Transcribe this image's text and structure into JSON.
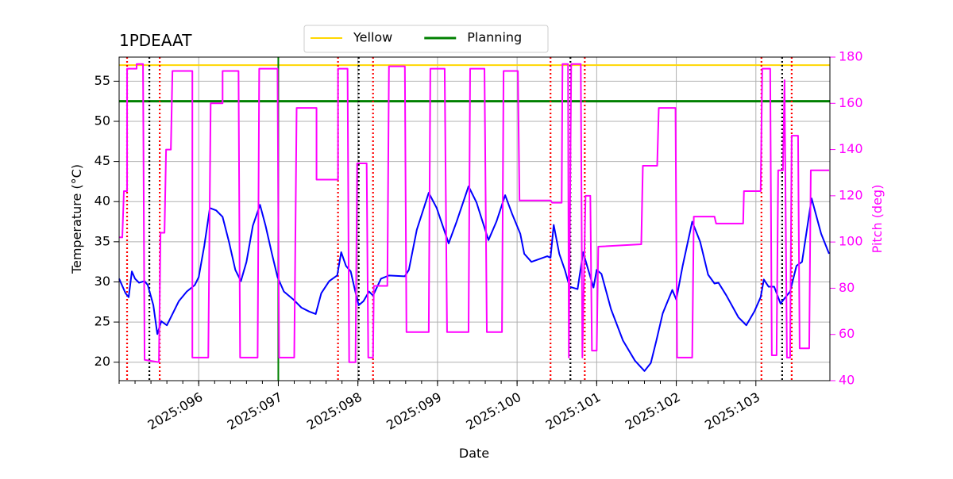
{
  "chart_data": {
    "type": "line",
    "title": "1PDEAAT",
    "xlabel": "Date",
    "ylabel": "Temperature (°C)",
    "y2label": "Pitch (deg)",
    "y2color": "magenta",
    "grid": true,
    "legend": "upper center",
    "xlim": [
      95.0,
      103.93
    ],
    "xticks": [
      {
        "value": 96,
        "label": "2025:096"
      },
      {
        "value": 97,
        "label": "2025:097"
      },
      {
        "value": 98,
        "label": "2025:098"
      },
      {
        "value": 99,
        "label": "2025:099"
      },
      {
        "value": 100,
        "label": "2025:100"
      },
      {
        "value": 101,
        "label": "2025:101"
      },
      {
        "value": 102,
        "label": "2025:102"
      },
      {
        "value": 103,
        "label": "2025:103"
      }
    ],
    "ylim": [
      17.7,
      58.0
    ],
    "yticks": [
      20,
      25,
      30,
      35,
      40,
      45,
      50,
      55
    ],
    "y2lim": [
      40,
      180
    ],
    "y2ticks": [
      40,
      60,
      80,
      100,
      120,
      140,
      160,
      180
    ],
    "hlines": [
      {
        "name": "Yellow",
        "color": "gold",
        "value": 57.0
      },
      {
        "name": "Planning",
        "color": "green",
        "value": 52.5
      }
    ],
    "vlines": [
      {
        "color": "red",
        "style": "dotted",
        "x": [
          95.1,
          95.51,
          97.75,
          98.19,
          100.42,
          100.85,
          103.07,
          103.45
        ]
      },
      {
        "color": "black",
        "style": "dotted",
        "x": [
          95.38,
          98.01,
          100.67,
          103.33
        ]
      },
      {
        "color": "green",
        "style": "solid",
        "x": [
          97.0
        ]
      }
    ],
    "series": [
      {
        "color": "blue",
        "x": [
          95.0,
          95.08,
          95.12,
          95.16,
          95.2,
          95.25,
          95.32,
          95.36,
          95.43,
          95.48,
          95.53,
          95.6,
          95.65,
          95.75,
          95.85,
          95.95,
          96.0,
          96.07,
          96.14,
          96.22,
          96.3,
          96.38,
          96.46,
          96.53,
          96.6,
          96.68,
          96.77,
          96.84,
          96.92,
          96.99,
          97.07,
          97.19,
          97.29,
          97.39,
          97.47,
          97.54,
          97.64,
          97.74,
          97.79,
          97.85,
          97.91,
          97.96,
          98.01,
          98.07,
          98.14,
          98.19,
          98.29,
          98.39,
          98.59,
          98.64,
          98.74,
          98.89,
          98.99,
          99.14,
          99.24,
          99.39,
          99.49,
          99.64,
          99.74,
          99.85,
          99.94,
          100.04,
          100.09,
          100.18,
          100.38,
          100.42,
          100.46,
          100.53,
          100.6,
          100.66,
          100.76,
          100.83,
          100.9,
          100.96,
          101.0,
          101.06,
          101.18,
          101.33,
          101.48,
          101.6,
          101.68,
          101.75,
          101.83,
          101.95,
          102.0,
          102.08,
          102.2,
          102.3,
          102.4,
          102.48,
          102.53,
          102.63,
          102.78,
          102.88,
          102.98,
          103.06,
          103.1,
          103.16,
          103.23,
          103.31,
          103.38,
          103.43,
          103.51,
          103.58,
          103.7,
          103.82,
          103.92
        ],
        "values": [
          30.4,
          28.6,
          28.1,
          31.3,
          30.4,
          29.9,
          30.1,
          29.6,
          27.1,
          23.5,
          25.1,
          24.6,
          25.6,
          27.6,
          28.8,
          29.6,
          30.6,
          34.5,
          39.2,
          38.9,
          38.1,
          35.0,
          31.5,
          30.1,
          32.5,
          37.0,
          39.6,
          37.0,
          33.5,
          30.6,
          28.8,
          27.8,
          26.8,
          26.3,
          26.0,
          28.6,
          30.1,
          30.8,
          33.7,
          32.0,
          31.3,
          29.1,
          27.1,
          27.6,
          28.8,
          28.3,
          30.4,
          30.8,
          30.7,
          31.5,
          36.5,
          41.1,
          39.2,
          34.8,
          37.5,
          41.9,
          39.9,
          35.2,
          37.5,
          40.8,
          38.4,
          36.0,
          33.5,
          32.5,
          33.2,
          33.0,
          37.1,
          33.5,
          31.5,
          29.4,
          29.1,
          33.7,
          31.3,
          29.3,
          31.5,
          31.0,
          26.6,
          22.7,
          20.2,
          18.9,
          19.9,
          22.7,
          26.1,
          29.0,
          27.8,
          32.0,
          37.5,
          35.0,
          30.9,
          29.8,
          29.9,
          28.3,
          25.6,
          24.6,
          26.3,
          28.1,
          30.3,
          29.4,
          29.4,
          27.3,
          28.2,
          28.8,
          32.0,
          32.5,
          40.4,
          36.0,
          33.5
        ]
      },
      {
        "color": "magenta",
        "axis": "y2",
        "x": [
          95.0,
          95.04,
          95.06,
          95.1,
          95.1,
          95.22,
          95.22,
          95.3,
          95.32,
          95.5,
          95.52,
          95.57,
          95.59,
          95.65,
          95.67,
          95.92,
          95.92,
          96.12,
          96.15,
          96.3,
          96.3,
          96.5,
          96.52,
          96.74,
          96.76,
          96.99,
          97.01,
          97.2,
          97.23,
          97.48,
          97.48,
          97.75,
          97.75,
          97.87,
          97.89,
          97.97,
          97.99,
          98.11,
          98.13,
          98.19,
          98.2,
          98.37,
          98.39,
          98.59,
          98.61,
          98.89,
          98.91,
          99.09,
          99.12,
          99.39,
          99.41,
          99.59,
          99.62,
          99.81,
          99.83,
          100.01,
          100.03,
          100.42,
          100.44,
          100.56,
          100.57,
          100.64,
          100.65,
          100.68,
          100.8,
          100.82,
          100.86,
          100.92,
          100.94,
          101.0,
          101.02,
          101.56,
          101.58,
          101.76,
          101.78,
          101.99,
          102.01,
          102.2,
          102.22,
          102.48,
          102.5,
          102.84,
          102.85,
          103.06,
          103.08,
          103.18,
          103.2,
          103.26,
          103.28,
          103.34,
          103.36,
          103.39,
          103.43,
          103.45,
          103.53,
          103.55,
          103.67,
          103.69,
          103.92
        ],
        "values": [
          102,
          102,
          122,
          122,
          175,
          175,
          177,
          177,
          49,
          48,
          104,
          104,
          140,
          140,
          174,
          174,
          50,
          50,
          160,
          160,
          174,
          174,
          50,
          50,
          175,
          175,
          50,
          50,
          158,
          158,
          127,
          127,
          175,
          175,
          48,
          48,
          134,
          134,
          50,
          50,
          81,
          81,
          176,
          176,
          61,
          61,
          175,
          175,
          61,
          61,
          175,
          175,
          61,
          61,
          174,
          174,
          118,
          118,
          117,
          117,
          177,
          177,
          50,
          177,
          177,
          50,
          120,
          120,
          53,
          53,
          98,
          99,
          133,
          133,
          158,
          158,
          50,
          50,
          111,
          111,
          108,
          108,
          122,
          122,
          175,
          175,
          51,
          51,
          131,
          131,
          170,
          50,
          50,
          146,
          146,
          54,
          54,
          131,
          131
        ]
      }
    ]
  }
}
